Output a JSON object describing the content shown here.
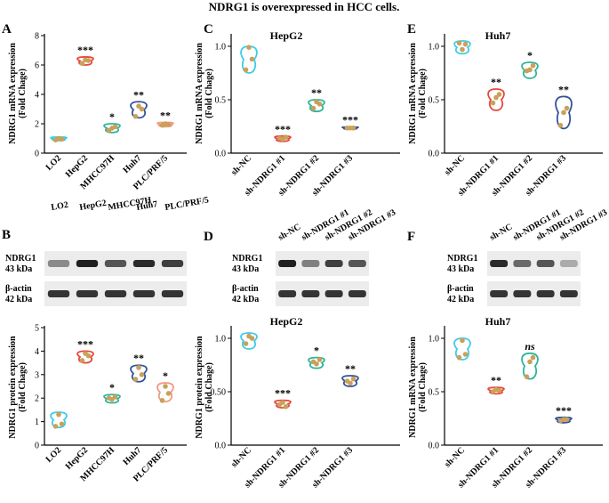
{
  "figure": {
    "title": "NDRG1 is overexpressed in HCC cells.",
    "panels": {
      "A": "A",
      "B": "B",
      "C": "C",
      "D": "D",
      "E": "E",
      "F": "F"
    },
    "subtitles": {
      "c": "HepG2",
      "d": "HepG2",
      "e": "Huh7",
      "f": "Huh7"
    }
  },
  "blots": {
    "b": {
      "lanes": [
        "LO2",
        "HepG2",
        "MHCC97H",
        "Huh7",
        "PLC/PRF/5"
      ],
      "row1_name": "NDRG1",
      "row1_kda": "43 kDa",
      "row2_name": "β-actin",
      "row2_kda": "42 kDa",
      "intensity1": [
        0.45,
        0.95,
        0.7,
        0.9,
        0.8
      ],
      "intensity2": [
        0.85,
        0.85,
        0.85,
        0.85,
        0.85
      ]
    },
    "d": {
      "lanes": [
        "sh-NC",
        "sh-NDRG1 #1",
        "sh-NDRG1 #2",
        "sh-NDRG1 #3"
      ],
      "row1_name": "NDRG1",
      "row1_kda": "43 kDa",
      "row2_name": "β-actin",
      "row2_kda": "42 kDa",
      "intensity1": [
        0.95,
        0.5,
        0.8,
        0.7
      ],
      "intensity2": [
        0.85,
        0.85,
        0.85,
        0.85
      ]
    },
    "f": {
      "lanes": [
        "sh-NC",
        "sh-NDRG1 #1",
        "sh-NDRG1 #2",
        "sh-NDRG1 #3"
      ],
      "row1_name": "NDRG1",
      "row1_kda": "43 kDa",
      "row2_name": "β-actin",
      "row2_kda": "42 kDa",
      "intensity1": [
        0.9,
        0.6,
        0.7,
        0.3
      ],
      "intensity2": [
        0.85,
        0.85,
        0.85,
        0.85
      ]
    }
  },
  "colors": [
    "#3ecbe8",
    "#e6473c",
    "#2fb39b",
    "#34529a",
    "#f09a80"
  ],
  "chart_data": [
    {
      "id": "a",
      "type": "violin",
      "ylabel": "NDRG1 mRNA expression",
      "ylabel2": "(Fold Chage)",
      "ylim": [
        0,
        8
      ],
      "yticks": [
        "0",
        "2",
        "4",
        "6",
        "8"
      ],
      "categories": [
        "LO2",
        "HepG2",
        "MHCC97H",
        "Huh7",
        "PLC/PRF/5"
      ],
      "ranges": [
        [
          0.85,
          1.1
        ],
        [
          6.0,
          6.55
        ],
        [
          1.4,
          2.0
        ],
        [
          2.4,
          3.5
        ],
        [
          1.8,
          2.1
        ]
      ],
      "points": [
        [
          0.9,
          1.0,
          0.95
        ],
        [
          6.1,
          6.35,
          6.3
        ],
        [
          1.55,
          1.7,
          1.8
        ],
        [
          2.5,
          3.2,
          3.0
        ],
        [
          1.9,
          2.0,
          1.95
        ]
      ],
      "sig": [
        "",
        "***",
        "*",
        "**",
        "**"
      ]
    },
    {
      "id": "b",
      "type": "violin",
      "ylabel": "NDRG1 protein expression",
      "ylabel2": "(Fold Chage)",
      "ylim": [
        0,
        5
      ],
      "yticks": [
        "0",
        "1",
        "2",
        "3",
        "4",
        "5"
      ],
      "categories": [
        "LO2",
        "HepG2",
        "MHCC97H",
        "Huh7",
        "PLC/PRF/5"
      ],
      "ranges": [
        [
          0.75,
          1.4
        ],
        [
          3.5,
          4.0
        ],
        [
          1.8,
          2.15
        ],
        [
          2.7,
          3.4
        ],
        [
          1.85,
          2.65
        ]
      ],
      "points": [
        [
          0.8,
          1.3,
          0.9
        ],
        [
          3.6,
          3.9,
          3.8
        ],
        [
          2.0,
          1.95,
          2.05
        ],
        [
          2.8,
          3.3,
          3.0
        ],
        [
          1.9,
          2.5,
          2.2
        ]
      ],
      "sig": [
        "",
        "***",
        "*",
        "**",
        "*"
      ]
    },
    {
      "id": "c",
      "type": "violin",
      "ylabel": "NDRG1 mRNA expression",
      "ylabel2": "(Fold Chage)",
      "ylim": [
        0,
        1.1
      ],
      "yticks": [
        "0.0",
        "0.5",
        "1.0"
      ],
      "tickvals": [
        0,
        0.5,
        1.0
      ],
      "categories": [
        "sh-NC",
        "sh-NDRG1 #1",
        "sh-NDRG1 #2",
        "sh-NDRG1 #3"
      ],
      "ranges": [
        [
          0.75,
          1.0
        ],
        [
          0.11,
          0.16
        ],
        [
          0.39,
          0.5
        ],
        [
          0.225,
          0.245
        ]
      ],
      "points": [
        [
          0.78,
          0.99,
          0.88
        ],
        [
          0.14,
          0.13,
          0.15
        ],
        [
          0.42,
          0.48,
          0.46
        ],
        [
          0.235,
          0.235,
          0.235
        ]
      ],
      "sig": [
        "",
        "***",
        "**",
        "***"
      ]
    },
    {
      "id": "d",
      "type": "violin",
      "ylabel": "NDRG1 protein expression",
      "ylabel2": "(Fold Chage)",
      "ylim": [
        0,
        1.1
      ],
      "yticks": [
        "0.0",
        "0.50",
        "1.0"
      ],
      "tickvals": [
        0,
        0.5,
        1.0
      ],
      "categories": [
        "sh-NC",
        "sh-NDRG1 #1",
        "sh-NDRG1 #2",
        "sh-NDRG1 #3"
      ],
      "ranges": [
        [
          0.9,
          1.05
        ],
        [
          0.35,
          0.42
        ],
        [
          0.72,
          0.82
        ],
        [
          0.55,
          0.65
        ]
      ],
      "points": [
        [
          0.95,
          1.02,
          1.0
        ],
        [
          0.38,
          0.4,
          0.36
        ],
        [
          0.78,
          0.76,
          0.8
        ],
        [
          0.6,
          0.58,
          0.62
        ]
      ],
      "sig": [
        "",
        "***",
        "*",
        "**"
      ]
    },
    {
      "id": "e",
      "type": "violin",
      "ylabel": "NDRG1 mRNA expression",
      "ylabel2": "(Fold Chage)",
      "ylim": [
        0,
        1.1
      ],
      "yticks": [
        "0.0",
        "0.5",
        "1.0"
      ],
      "tickvals": [
        0,
        0.5,
        1.0
      ],
      "categories": [
        "sh-NC",
        "sh-NDRG1 #1",
        "sh-NDRG1 #2",
        "sh-NDRG1 #3"
      ],
      "ranges": [
        [
          0.93,
          1.05
        ],
        [
          0.4,
          0.6
        ],
        [
          0.7,
          0.85
        ],
        [
          0.23,
          0.53
        ]
      ],
      "points": [
        [
          1.03,
          0.97,
          1.02
        ],
        [
          0.47,
          0.52,
          0.55
        ],
        [
          0.77,
          0.78,
          0.82
        ],
        [
          0.26,
          0.38,
          0.42
        ]
      ],
      "sig": [
        "",
        "**",
        "*",
        "**"
      ]
    },
    {
      "id": "f",
      "type": "violin",
      "ylabel": "NDRG1 mRNA expression",
      "ylabel2": "(Fold Chage)",
      "ylim": [
        0,
        1.1
      ],
      "yticks": [
        "0.0",
        "0.5",
        "1.0"
      ],
      "tickvals": [
        0,
        0.5,
        1.0
      ],
      "categories": [
        "sh-NC",
        "sh-NDRG1 #1",
        "sh-NDRG1 #2",
        "sh-NDRG1 #3"
      ],
      "ranges": [
        [
          0.8,
          1.0
        ],
        [
          0.48,
          0.54
        ],
        [
          0.62,
          0.86
        ],
        [
          0.21,
          0.26
        ]
      ],
      "points": [
        [
          0.82,
          0.98,
          0.85
        ],
        [
          0.5,
          0.52,
          0.51
        ],
        [
          0.64,
          0.78,
          0.82
        ],
        [
          0.23,
          0.24,
          0.24
        ]
      ],
      "sig": [
        "",
        "**",
        "ns",
        "***"
      ]
    }
  ]
}
